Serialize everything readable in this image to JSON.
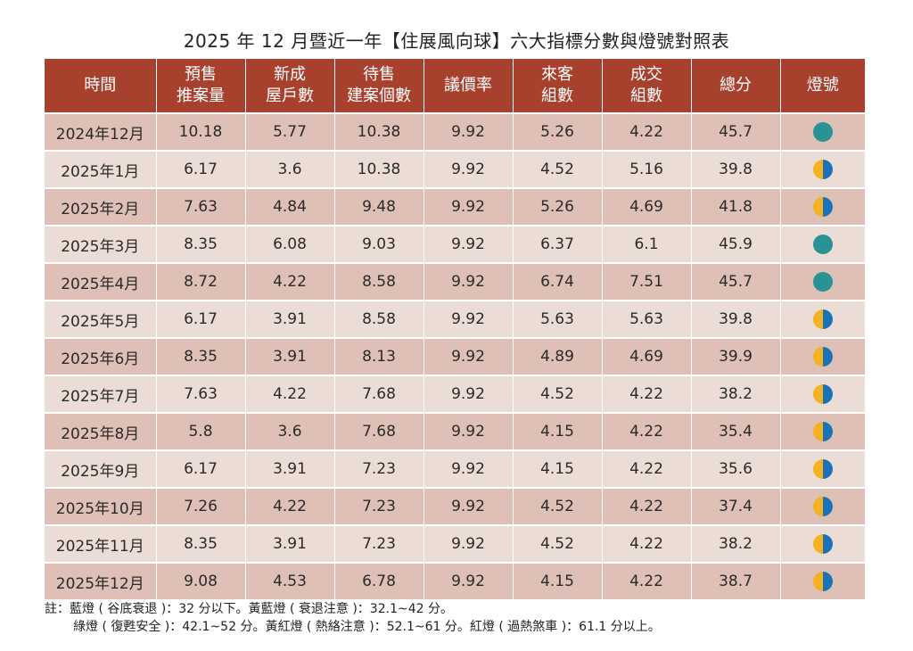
{
  "title": "2025 年 12 月暨近一年【住展風向球】六大指標分數與燈號對照表",
  "chart_data": {
    "type": "table",
    "columns": [
      [
        "時間"
      ],
      [
        "預售",
        "推案量"
      ],
      [
        "新成",
        "屋戶數"
      ],
      [
        "待售",
        "建案個數"
      ],
      [
        "議價率"
      ],
      [
        "來客",
        "組數"
      ],
      [
        "成交",
        "組數"
      ],
      [
        "總分"
      ],
      [
        "燈號"
      ]
    ],
    "rows": [
      {
        "time": "2024年12月",
        "presale": "10.18",
        "newhouse": "5.77",
        "forsale": "10.38",
        "bargain": "9.92",
        "visitors": "5.26",
        "deals": "4.22",
        "total": "45.7",
        "light": "green"
      },
      {
        "time": "2025年1月",
        "presale": "6.17",
        "newhouse": "3.6",
        "forsale": "10.38",
        "bargain": "9.92",
        "visitors": "4.52",
        "deals": "5.16",
        "total": "39.8",
        "light": "yellow-blue"
      },
      {
        "time": "2025年2月",
        "presale": "7.63",
        "newhouse": "4.84",
        "forsale": "9.48",
        "bargain": "9.92",
        "visitors": "5.26",
        "deals": "4.69",
        "total": "41.8",
        "light": "yellow-blue"
      },
      {
        "time": "2025年3月",
        "presale": "8.35",
        "newhouse": "6.08",
        "forsale": "9.03",
        "bargain": "9.92",
        "visitors": "6.37",
        "deals": "6.1",
        "total": "45.9",
        "light": "green"
      },
      {
        "time": "2025年4月",
        "presale": "8.72",
        "newhouse": "4.22",
        "forsale": "8.58",
        "bargain": "9.92",
        "visitors": "6.74",
        "deals": "7.51",
        "total": "45.7",
        "light": "green"
      },
      {
        "time": "2025年5月",
        "presale": "6.17",
        "newhouse": "3.91",
        "forsale": "8.58",
        "bargain": "9.92",
        "visitors": "5.63",
        "deals": "5.63",
        "total": "39.8",
        "light": "yellow-blue"
      },
      {
        "time": "2025年6月",
        "presale": "8.35",
        "newhouse": "3.91",
        "forsale": "8.13",
        "bargain": "9.92",
        "visitors": "4.89",
        "deals": "4.69",
        "total": "39.9",
        "light": "yellow-blue"
      },
      {
        "time": "2025年7月",
        "presale": "7.63",
        "newhouse": "4.22",
        "forsale": "7.68",
        "bargain": "9.92",
        "visitors": "4.52",
        "deals": "4.22",
        "total": "38.2",
        "light": "yellow-blue"
      },
      {
        "time": "2025年8月",
        "presale": "5.8",
        "newhouse": "3.6",
        "forsale": "7.68",
        "bargain": "9.92",
        "visitors": "4.15",
        "deals": "4.22",
        "total": "35.4",
        "light": "yellow-blue"
      },
      {
        "time": "2025年9月",
        "presale": "6.17",
        "newhouse": "3.91",
        "forsale": "7.23",
        "bargain": "9.92",
        "visitors": "4.15",
        "deals": "4.22",
        "total": "35.6",
        "light": "yellow-blue"
      },
      {
        "time": "2025年10月",
        "presale": "7.26",
        "newhouse": "4.22",
        "forsale": "7.23",
        "bargain": "9.92",
        "visitors": "4.52",
        "deals": "4.22",
        "total": "37.4",
        "light": "yellow-blue"
      },
      {
        "time": "2025年11月",
        "presale": "8.35",
        "newhouse": "3.91",
        "forsale": "7.23",
        "bargain": "9.92",
        "visitors": "4.52",
        "deals": "4.22",
        "total": "38.2",
        "light": "yellow-blue"
      },
      {
        "time": "2025年12月",
        "presale": "9.08",
        "newhouse": "4.53",
        "forsale": "6.78",
        "bargain": "9.92",
        "visitors": "4.15",
        "deals": "4.22",
        "total": "38.7",
        "light": "yellow-blue"
      }
    ]
  },
  "notes": {
    "line1": "註：藍燈 ( 谷底衰退 )：32 分以下。黃藍燈 ( 衰退注意 )：32.1~42 分。",
    "line2": "綠燈 ( 復甦安全 )：42.1~52 分。黃紅燈 ( 熱絡注意 )：52.1~61 分。紅燈 ( 過熱煞車 )：61.1 分以上。"
  },
  "colors": {
    "header": "#a8402e",
    "row_dark": "#dfc0b6",
    "row_light": "#ecdcd6",
    "green_light": "#2a9195",
    "yellow": "#f3b221",
    "blue": "#1a72b8"
  }
}
